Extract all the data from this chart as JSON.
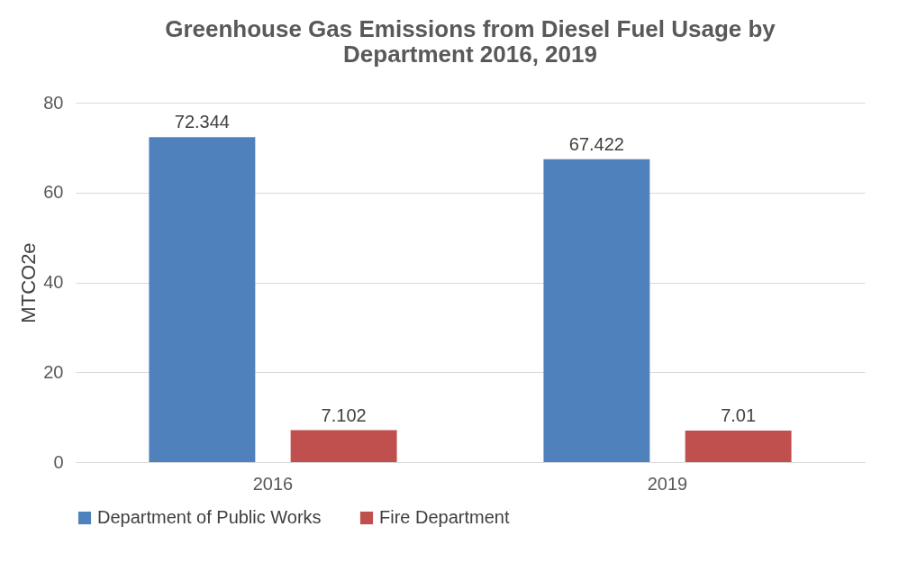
{
  "chart_data": {
    "type": "bar",
    "title": "Greenhouse Gas Emissions from Diesel Fuel Usage by Department 2016, 2019",
    "ylabel": "MTCO2e",
    "categories": [
      "2016",
      "2019"
    ],
    "series": [
      {
        "name": "Department of Public Works",
        "color": "#4f81bd",
        "values": [
          72.344,
          67.422
        ]
      },
      {
        "name": "Fire Department",
        "color": "#c0504d",
        "values": [
          7.102,
          7.01
        ]
      }
    ],
    "ylim": [
      0,
      80
    ],
    "yticks": [
      0,
      20,
      40,
      60,
      80
    ],
    "grid": "y",
    "legend": "bottom",
    "data_labels": true
  }
}
